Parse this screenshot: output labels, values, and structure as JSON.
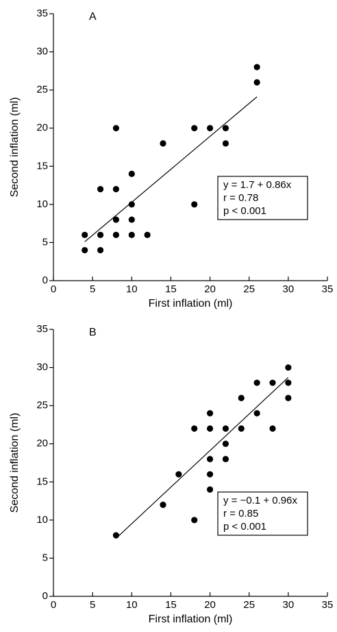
{
  "chart_data": [
    {
      "type": "scatter",
      "panel_label": "A",
      "xlabel": "First inflation (ml)",
      "ylabel": "Second inflation (ml)",
      "xlim": [
        0,
        35
      ],
      "ylim": [
        0,
        35
      ],
      "xticks": [
        0,
        5,
        10,
        15,
        20,
        25,
        30,
        35
      ],
      "yticks": [
        0,
        5,
        10,
        15,
        20,
        25,
        30,
        35
      ],
      "color": "#000000",
      "x": [
        4,
        4,
        6,
        6,
        6,
        8,
        8,
        8,
        8,
        10,
        10,
        10,
        10,
        12,
        14,
        18,
        18,
        20,
        22,
        22,
        26,
        26
      ],
      "values": [
        6,
        4,
        12,
        6,
        4,
        20,
        12,
        8,
        6,
        14,
        10,
        8,
        6,
        6,
        18,
        20,
        10,
        20,
        20,
        18,
        28,
        26
      ],
      "fit_line": {
        "x": [
          4,
          26
        ],
        "values": [
          5.1,
          24.1
        ]
      },
      "annotation": [
        "y = 1.7 + 0.86x",
        "r = 0.78",
        "p < 0.001"
      ]
    },
    {
      "type": "scatter",
      "panel_label": "B",
      "xlabel": "First inflation (ml)",
      "ylabel": "Second inflation (ml)",
      "xlim": [
        0,
        35
      ],
      "ylim": [
        0,
        35
      ],
      "xticks": [
        0,
        5,
        10,
        15,
        20,
        25,
        30,
        35
      ],
      "yticks": [
        0,
        5,
        10,
        15,
        20,
        25,
        30,
        35
      ],
      "color": "#000000",
      "x": [
        8,
        14,
        16,
        18,
        18,
        20,
        20,
        20,
        20,
        20,
        22,
        22,
        22,
        24,
        24,
        26,
        26,
        28,
        28,
        30,
        30,
        30
      ],
      "values": [
        8,
        12,
        16,
        22,
        10,
        24,
        22,
        18,
        16,
        14,
        22,
        20,
        18,
        26,
        22,
        28,
        24,
        28,
        22,
        30,
        28,
        26
      ],
      "fit_line": {
        "x": [
          8,
          30
        ],
        "values": [
          7.6,
          28.7
        ]
      },
      "annotation": [
        "y = −0.1 + 0.96x",
        "r = 0.85",
        "p < 0.001"
      ]
    }
  ]
}
